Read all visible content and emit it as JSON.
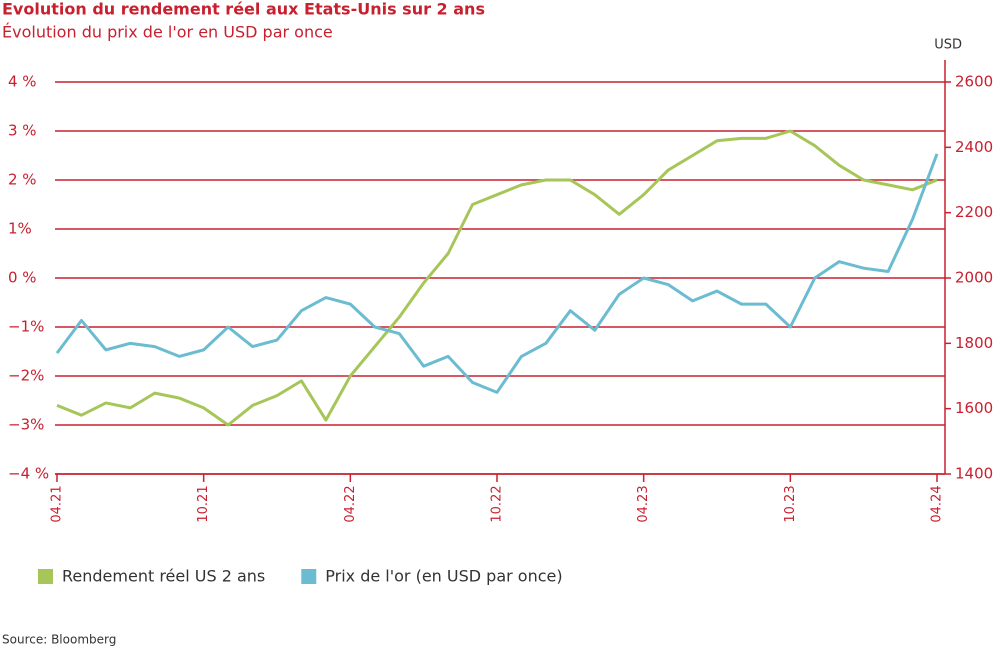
{
  "chart_data": {
    "type": "line",
    "title": "Evolution du rendement réel aux Etats-Unis sur 2 ans",
    "subtitle": "Évolution du prix de l'or en USD par once",
    "y2_label": "USD",
    "source": "Source: Bloomberg",
    "categories": [
      "04.21",
      null,
      null,
      null,
      null,
      null,
      "10.21",
      null,
      null,
      null,
      null,
      null,
      "04.22",
      null,
      null,
      null,
      null,
      null,
      "10.22",
      null,
      null,
      null,
      null,
      null,
      "04.23",
      null,
      null,
      null,
      null,
      null,
      "10.23",
      null,
      null,
      null,
      null,
      null,
      "04.24"
    ],
    "series": [
      {
        "name": "Rendement réel US 2 ans",
        "color": "#a6c65a",
        "axis": "y",
        "values": [
          -2.6,
          -2.8,
          -2.55,
          -2.65,
          -2.35,
          -2.45,
          -2.65,
          -3.0,
          -2.6,
          -2.4,
          -2.1,
          -2.9,
          -2.0,
          -1.4,
          -0.8,
          -0.1,
          0.5,
          1.5,
          1.7,
          1.9,
          2.0,
          2.0,
          1.7,
          1.3,
          1.7,
          2.2,
          2.5,
          2.8,
          2.85,
          2.85,
          3.0,
          2.7,
          2.3,
          2.0,
          1.9,
          1.8,
          2.0
        ]
      },
      {
        "name": "Prix de l'or (en USD par once)",
        "color": "#6bbcd1",
        "axis": "y2",
        "values": [
          1770,
          1870,
          1780,
          1800,
          1790,
          1760,
          1780,
          1850,
          1790,
          1810,
          1900,
          1940,
          1920,
          1850,
          1830,
          1730,
          1760,
          1680,
          1650,
          1760,
          1800,
          1900,
          1840,
          1950,
          2000,
          1980,
          1930,
          1960,
          1920,
          1920,
          1850,
          2000,
          2050,
          2030,
          2020,
          2180,
          2380
        ]
      }
    ],
    "ylim": [
      -4,
      4
    ],
    "yticks": [
      {
        "value": -4,
        "label": "−4 %"
      },
      {
        "value": -3,
        "label": "−3%"
      },
      {
        "value": -2,
        "label": "−2%"
      },
      {
        "value": -1,
        "label": "−1%"
      },
      {
        "value": 0,
        "label": "0 %"
      },
      {
        "value": 1,
        "label": "1%"
      },
      {
        "value": 2,
        "label": "2 %"
      },
      {
        "value": 3,
        "label": "3 %"
      },
      {
        "value": 4,
        "label": "4 %"
      }
    ],
    "y2lim": [
      1400,
      2600
    ],
    "y2ticks": [
      1400,
      1600,
      1800,
      2000,
      2200,
      2400,
      2600
    ],
    "grid": true,
    "axis_color": "#c8202f"
  }
}
